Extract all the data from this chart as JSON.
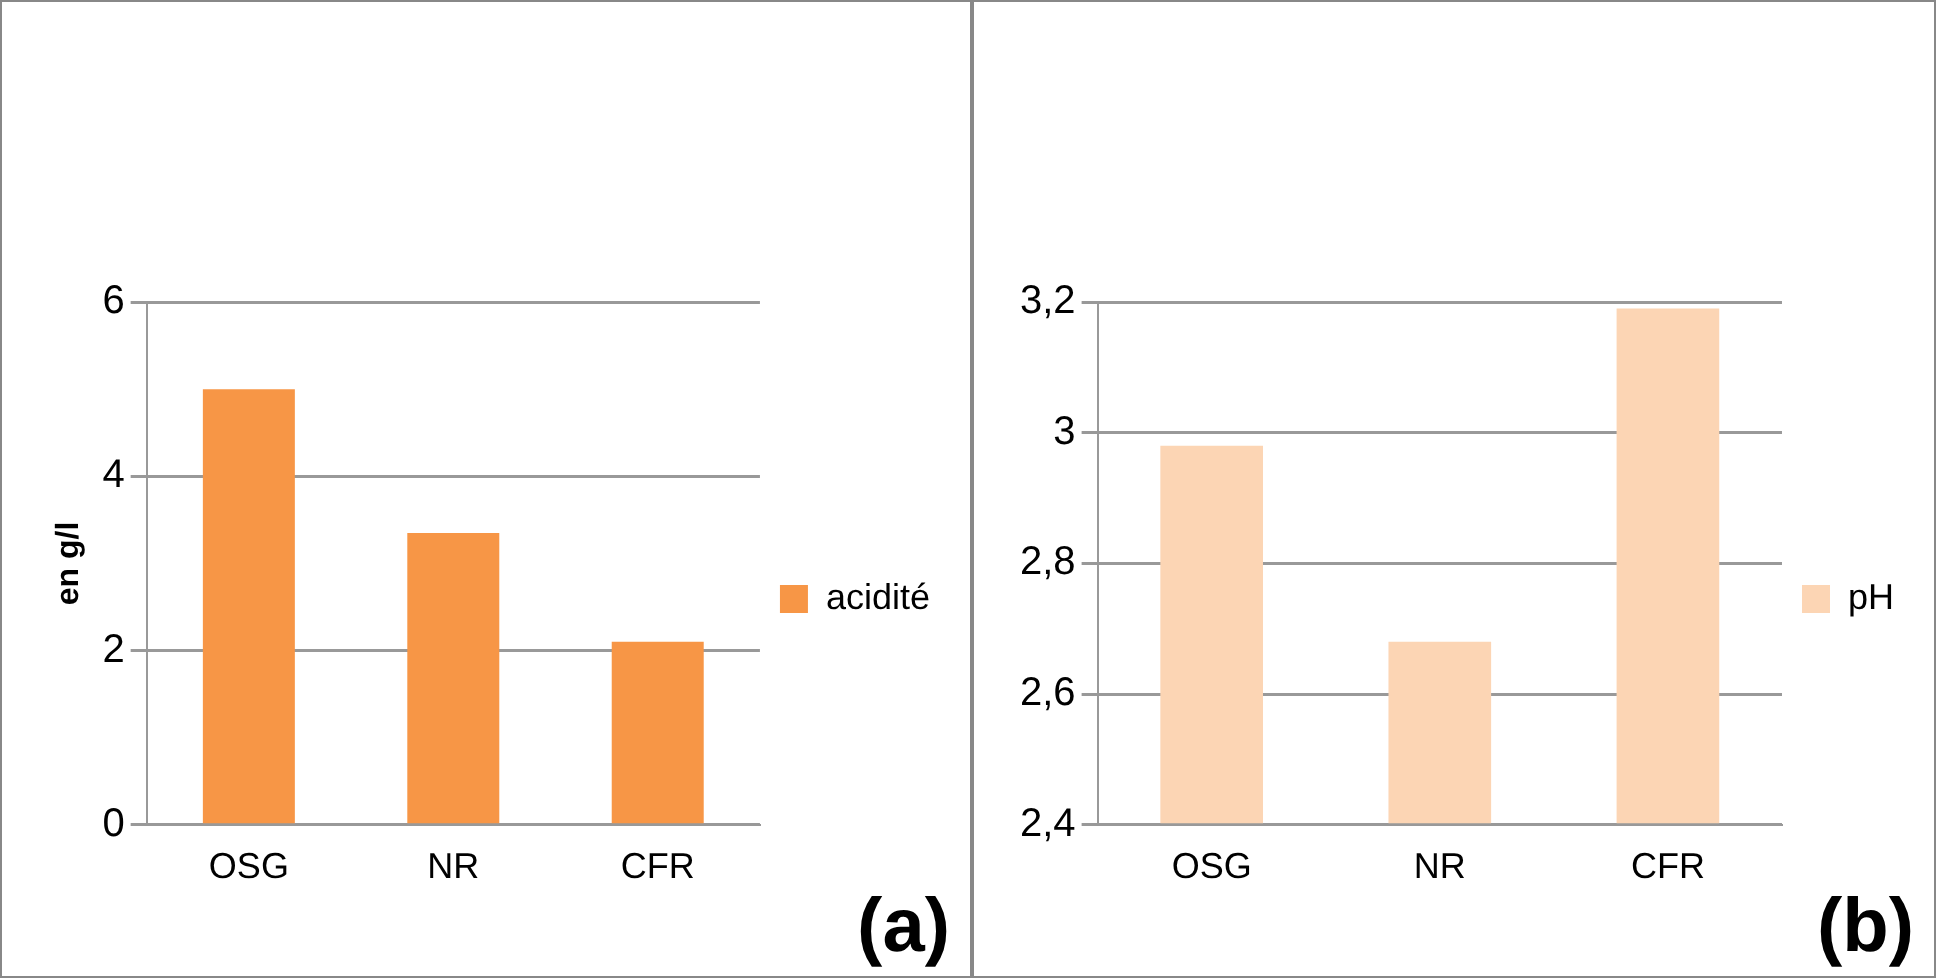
{
  "chart_data": [
    {
      "type": "bar",
      "categories": [
        "OSG",
        "NR",
        "CFR"
      ],
      "series": [
        {
          "name": "acidité",
          "color": "#f79646",
          "values": [
            5.0,
            3.35,
            2.1
          ]
        }
      ],
      "ylabel": "en g/l",
      "ylim": [
        0,
        6
      ],
      "yticks": [
        0,
        2,
        4,
        6
      ],
      "grid": "y",
      "legend": "right",
      "annotations": [
        "(a)"
      ]
    },
    {
      "type": "bar",
      "categories": [
        "OSG",
        "NR",
        "CFR"
      ],
      "series": [
        {
          "name": "pH",
          "color": "#fcd5b4",
          "values": [
            2.98,
            2.68,
            3.19
          ]
        }
      ],
      "ylim": [
        2.4,
        3.2
      ],
      "yticks": [
        {
          "value": 2.4,
          "label": "2,4"
        },
        {
          "value": 2.6,
          "label": "2,6"
        },
        {
          "value": 2.8,
          "label": "2,8"
        },
        {
          "value": 3,
          "label": "3"
        },
        {
          "value": 3.2,
          "label": "3,2"
        }
      ],
      "grid": "y",
      "legend": "right",
      "annotations": [
        "(b)"
      ]
    }
  ]
}
